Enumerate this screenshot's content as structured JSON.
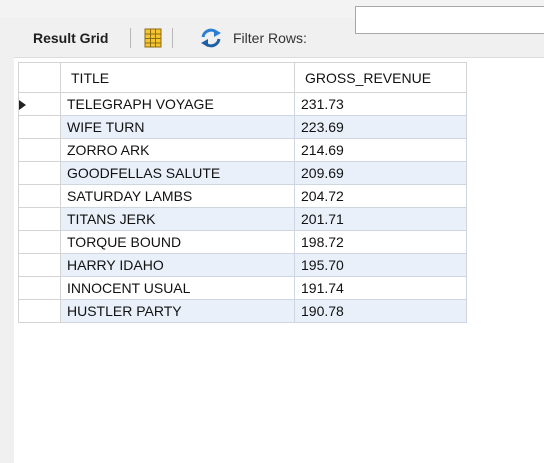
{
  "toolbar": {
    "result_grid_label": "Result Grid",
    "filter_rows_label": "Filter Rows:",
    "filter_value": ""
  },
  "table": {
    "columns": [
      "TITLE",
      "GROSS_REVENUE"
    ],
    "rows": [
      {
        "title": "TELEGRAPH VOYAGE",
        "gross_revenue": "231.73"
      },
      {
        "title": "WIFE TURN",
        "gross_revenue": "223.69"
      },
      {
        "title": "ZORRO ARK",
        "gross_revenue": "214.69"
      },
      {
        "title": "GOODFELLAS SALUTE",
        "gross_revenue": "209.69"
      },
      {
        "title": "SATURDAY LAMBS",
        "gross_revenue": "204.72"
      },
      {
        "title": "TITANS JERK",
        "gross_revenue": "201.71"
      },
      {
        "title": "TORQUE BOUND",
        "gross_revenue": "198.72"
      },
      {
        "title": "HARRY IDAHO",
        "gross_revenue": "195.70"
      },
      {
        "title": "INNOCENT USUAL",
        "gross_revenue": "191.74"
      },
      {
        "title": "HUSTLER PARTY",
        "gross_revenue": "190.78"
      }
    ]
  },
  "icons": {
    "grid": "grid-view-icon",
    "refresh": "refresh-icon",
    "current_row": "current-row-marker-icon"
  },
  "colors": {
    "alt_row": "#e9f0f9",
    "grid_icon_fill": "#f5c431"
  }
}
